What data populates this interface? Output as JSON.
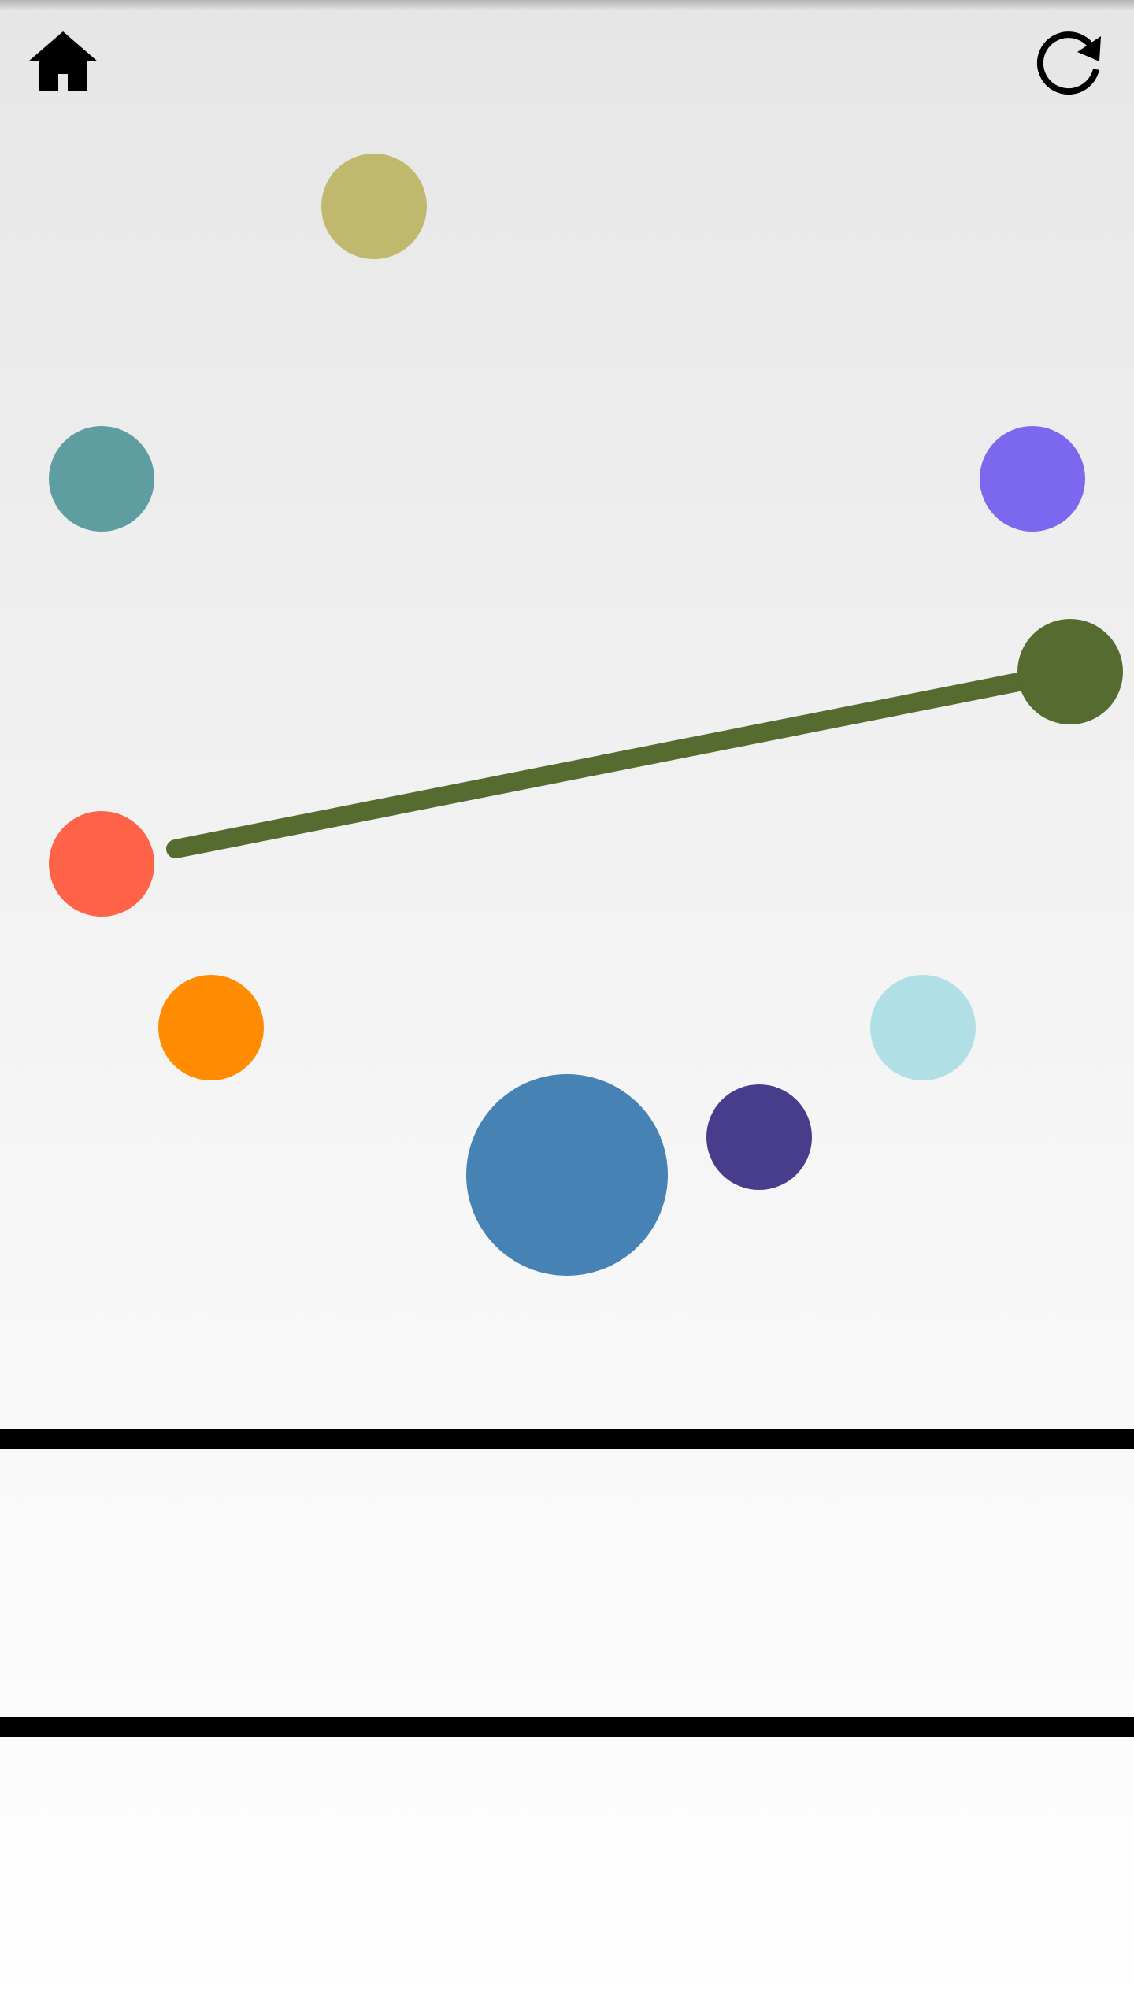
{
  "icons": {
    "home": "home-icon",
    "restart": "restart-icon"
  },
  "colors": {
    "background_top": "#e6e6e6",
    "background_bottom": "#ffffff",
    "divider": "#000000"
  },
  "dots": [
    {
      "name": "dot-khaki",
      "color": "#bfb86d"
    },
    {
      "name": "dot-teal",
      "color": "#5f9ea0"
    },
    {
      "name": "dot-purple",
      "color": "#7b68ee"
    },
    {
      "name": "dot-olive",
      "color": "#556b2f"
    },
    {
      "name": "dot-tomato",
      "color": "#ff6347"
    },
    {
      "name": "dot-orange",
      "color": "#ff8c00"
    },
    {
      "name": "dot-light-blue",
      "color": "#b0e0e6"
    },
    {
      "name": "dot-steel-blue",
      "color": "#4682b4"
    },
    {
      "name": "dot-indigo",
      "color": "#483d8b"
    }
  ],
  "drag_line": {
    "color": "#556b2f"
  }
}
